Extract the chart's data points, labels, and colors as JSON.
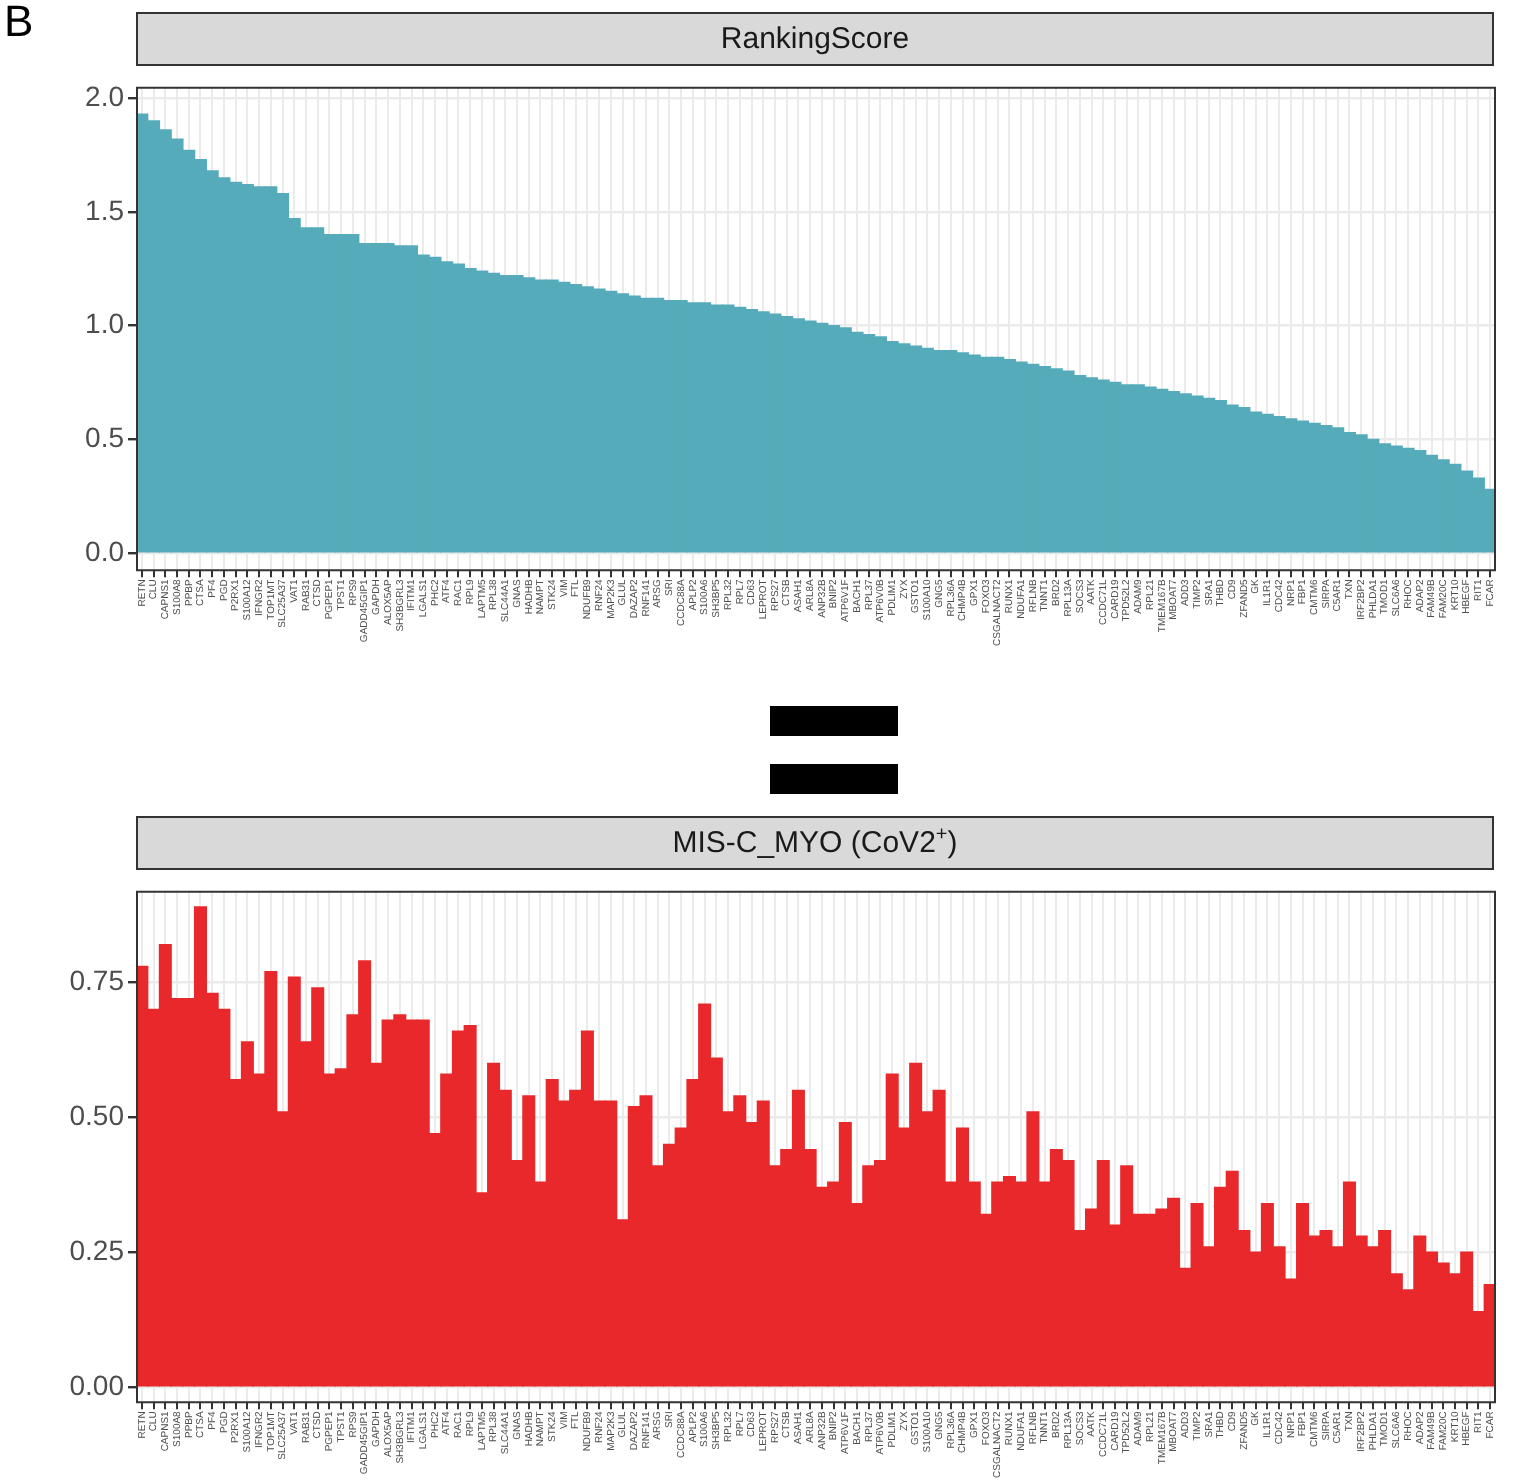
{
  "chart_data": [
    {
      "type": "bar",
      "title": "RankingScore",
      "annotations": [
        "B"
      ],
      "color": "#56abba",
      "ylim": [
        -0.08,
        2.05
      ],
      "yticks": [
        {
          "value": 0,
          "label": "0.0"
        },
        0.5,
        {
          "value": 1,
          "label": "1.0"
        },
        1.5,
        {
          "value": 2,
          "label": "2.0"
        }
      ],
      "grid": true,
      "categories": [
        "RETN",
        "CLU",
        "CAPNS1",
        "S100A8",
        "PPBP",
        "CTSA",
        "PF4",
        "PGD",
        "P2RX1",
        "S100A12",
        "IFNGR2",
        "TOP1MT",
        "SLC25A37",
        "VAT1",
        "RAB31",
        "CTSD",
        "PGPEP1",
        "TPST1",
        "RPS9",
        "GADD45GIP1",
        "GAPDH",
        "ALOX5AP",
        "SH3BGRL3",
        "IFITM1",
        "LGALS1",
        "PHC2",
        "ATF4",
        "RAC1",
        "RPL9",
        "LAPTM5",
        "RPL38",
        "SLC44A1",
        "GNAS",
        "HADHB",
        "NAMPT",
        "STK24",
        "VIM",
        "FTL",
        "NDUFB9",
        "RNF24",
        "MAP2K3",
        "GLUL",
        "DAZAP2",
        "RNF141",
        "ARSG",
        "SRI",
        "CCDC88A",
        "APLP2",
        "S100A6",
        "SH3BP5",
        "RPL32",
        "RPL7",
        "CD63",
        "LEPROT",
        "RPS27",
        "CTSB",
        "ASAH1",
        "ARL8A",
        "ANP32B",
        "BNIP2",
        "ATP6V1F",
        "BACH1",
        "RPL37",
        "ATP6V0B",
        "PDLIM1",
        "ZYX",
        "GSTO1",
        "S100A10",
        "GNG5",
        "RPL36A",
        "CHMP4B",
        "GPX1",
        "FOXO3",
        "CSGALNACT2",
        "RUNX1",
        "NDUFA1",
        "RFLNB",
        "TNNT1",
        "BRD2",
        "RPL13A",
        "SOCS3",
        "AATK",
        "CCDC71L",
        "CARD19",
        "TPD52L2",
        "ADAM9",
        "RPL21",
        "TMEM167B",
        "MBOAT7",
        "ADD3",
        "TIMP2",
        "SRA1",
        "THBD",
        "CD9",
        "ZFAND5",
        "GK",
        "IL1R1",
        "CDC42",
        "NRP1",
        "FBP1",
        "CMTM6",
        "SIRPA",
        "C5AR1",
        "TXN",
        "IRF2BP2",
        "PHLDA1",
        "TMOD1",
        "SLC6A6",
        "RHOC",
        "ADAP2",
        "FAM49B",
        "FAM20C",
        "KRT10",
        "HBEGF",
        "RIT1",
        "FCAR"
      ],
      "values": [
        1.93,
        1.9,
        1.86,
        1.82,
        1.77,
        1.73,
        1.68,
        1.65,
        1.63,
        1.62,
        1.61,
        1.61,
        1.58,
        1.47,
        1.43,
        1.43,
        1.4,
        1.4,
        1.4,
        1.36,
        1.36,
        1.36,
        1.35,
        1.35,
        1.31,
        1.3,
        1.28,
        1.27,
        1.25,
        1.24,
        1.23,
        1.22,
        1.22,
        1.21,
        1.2,
        1.2,
        1.19,
        1.18,
        1.17,
        1.16,
        1.15,
        1.14,
        1.13,
        1.12,
        1.12,
        1.11,
        1.11,
        1.1,
        1.1,
        1.09,
        1.09,
        1.08,
        1.07,
        1.06,
        1.05,
        1.04,
        1.03,
        1.02,
        1.01,
        1.0,
        0.99,
        0.97,
        0.96,
        0.95,
        0.93,
        0.92,
        0.91,
        0.9,
        0.89,
        0.89,
        0.88,
        0.87,
        0.86,
        0.86,
        0.85,
        0.84,
        0.83,
        0.82,
        0.81,
        0.8,
        0.78,
        0.77,
        0.76,
        0.75,
        0.74,
        0.74,
        0.73,
        0.72,
        0.71,
        0.7,
        0.69,
        0.68,
        0.67,
        0.65,
        0.64,
        0.62,
        0.61,
        0.6,
        0.59,
        0.58,
        0.57,
        0.56,
        0.55,
        0.53,
        0.52,
        0.5,
        0.48,
        0.47,
        0.46,
        0.45,
        0.43,
        0.41,
        0.39,
        0.36,
        0.33,
        0.28
      ]
    },
    {
      "type": "bar",
      "title": "MIS-C_MYO (CoV2$^{+}$)",
      "color": "#e8282b",
      "ylim": [
        -0.03,
        0.92
      ],
      "yticks": [
        {
          "value": 0,
          "label": "0.00"
        },
        0.25,
        {
          "value": 0.5,
          "label": "0.50"
        },
        0.75
      ],
      "grid": true,
      "categories": [
        "RETN",
        "CLU",
        "CAPNS1",
        "S100A8",
        "PPBP",
        "CTSA",
        "PF4",
        "PGD",
        "P2RX1",
        "S100A12",
        "IFNGR2",
        "TOP1MT",
        "SLC25A37",
        "VAT1",
        "RAB31",
        "CTSD",
        "PGPEP1",
        "TPST1",
        "RPS9",
        "GADD45GIP1",
        "GAPDH",
        "ALOX5AP",
        "SH3BGRL3",
        "IFITM1",
        "LGALS1",
        "PHC2",
        "ATF4",
        "RAC1",
        "RPL9",
        "LAPTM5",
        "RPL38",
        "SLC44A1",
        "GNAS",
        "HADHB",
        "NAMPT",
        "STK24",
        "VIM",
        "FTL",
        "NDUFB9",
        "RNF24",
        "MAP2K3",
        "GLUL",
        "DAZAP2",
        "RNF141",
        "ARSG",
        "SRI",
        "CCDC88A",
        "APLP2",
        "S100A6",
        "SH3BP5",
        "RPL32",
        "RPL7",
        "CD63",
        "LEPROT",
        "RPS27",
        "CTSB",
        "ASAH1",
        "ARL8A",
        "ANP32B",
        "BNIP2",
        "ATP6V1F",
        "BACH1",
        "RPL37",
        "ATP6V0B",
        "PDLIM1",
        "ZYX",
        "GSTO1",
        "S100A10",
        "GNG5",
        "RPL36A",
        "CHMP4B",
        "GPX1",
        "FOXO3",
        "CSGALNACT2",
        "RUNX1",
        "NDUFA1",
        "RFLNB",
        "TNNT1",
        "BRD2",
        "RPL13A",
        "SOCS3",
        "AATK",
        "CCDC71L",
        "CARD19",
        "TPD52L2",
        "ADAM9",
        "RPL21",
        "TMEM167B",
        "MBOAT7",
        "ADD3",
        "TIMP2",
        "SRA1",
        "THBD",
        "CD9",
        "ZFAND5",
        "GK",
        "IL1R1",
        "CDC42",
        "NRP1",
        "FBP1",
        "CMTM6",
        "SIRPA",
        "C5AR1",
        "TXN",
        "IRF2BP2",
        "PHLDA1",
        "TMOD1",
        "SLC6A6",
        "RHOC",
        "ADAP2",
        "FAM49B",
        "FAM20C",
        "KRT10",
        "HBEGF",
        "RIT1",
        "FCAR"
      ],
      "values": [
        0.78,
        0.7,
        0.82,
        0.72,
        0.72,
        0.89,
        0.73,
        0.7,
        0.57,
        0.64,
        0.58,
        0.77,
        0.51,
        0.76,
        0.64,
        0.74,
        0.58,
        0.59,
        0.69,
        0.79,
        0.6,
        0.68,
        0.69,
        0.68,
        0.68,
        0.47,
        0.58,
        0.66,
        0.67,
        0.36,
        0.6,
        0.55,
        0.42,
        0.54,
        0.38,
        0.57,
        0.53,
        0.55,
        0.66,
        0.53,
        0.53,
        0.31,
        0.52,
        0.54,
        0.41,
        0.45,
        0.48,
        0.57,
        0.71,
        0.61,
        0.51,
        0.54,
        0.49,
        0.53,
        0.41,
        0.44,
        0.55,
        0.44,
        0.37,
        0.38,
        0.49,
        0.34,
        0.41,
        0.42,
        0.58,
        0.48,
        0.6,
        0.51,
        0.55,
        0.38,
        0.48,
        0.38,
        0.32,
        0.38,
        0.39,
        0.38,
        0.51,
        0.38,
        0.44,
        0.42,
        0.29,
        0.33,
        0.42,
        0.3,
        0.41,
        0.32,
        0.32,
        0.33,
        0.35,
        0.22,
        0.34,
        0.26,
        0.37,
        0.4,
        0.29,
        0.25,
        0.34,
        0.26,
        0.2,
        0.34,
        0.28,
        0.29,
        0.26,
        0.38,
        0.28,
        0.26,
        0.29,
        0.21,
        0.18,
        0.28,
        0.25,
        0.23,
        0.21,
        0.25,
        0.14,
        0.19
      ]
    }
  ]
}
